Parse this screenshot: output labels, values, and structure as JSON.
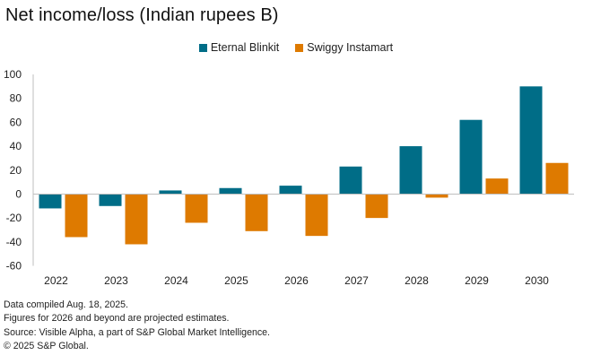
{
  "chart_data": {
    "type": "bar",
    "title": "Net income/loss (Indian rupees B)",
    "xlabel": "",
    "ylabel": "",
    "categories": [
      "2022",
      "2023",
      "2024",
      "2025",
      "2026",
      "2027",
      "2028",
      "2029",
      "2030"
    ],
    "series": [
      {
        "name": "Eternal Blinkit",
        "color": "#006D87",
        "values": [
          -12,
          -10,
          3,
          5,
          7,
          23,
          40,
          62,
          90
        ]
      },
      {
        "name": "Swiggy Instamart",
        "color": "#DE7A00",
        "values": [
          -36,
          -42,
          -24,
          -31,
          -35,
          -20,
          -3,
          13,
          26
        ]
      }
    ],
    "ylim": [
      -60,
      100
    ],
    "yticks": [
      100,
      80,
      60,
      40,
      20,
      0,
      -20,
      -40,
      -60
    ],
    "grid": false,
    "legend_position": "top-center"
  },
  "notes": [
    "Data compiled Aug. 18, 2025.",
    "Figures for 2026 and beyond are projected estimates.",
    "Source: Visible Alpha, a part of S&P Global Market Intelligence.",
    "© 2025 S&P Global."
  ],
  "axis_color": "#BFBFBF"
}
